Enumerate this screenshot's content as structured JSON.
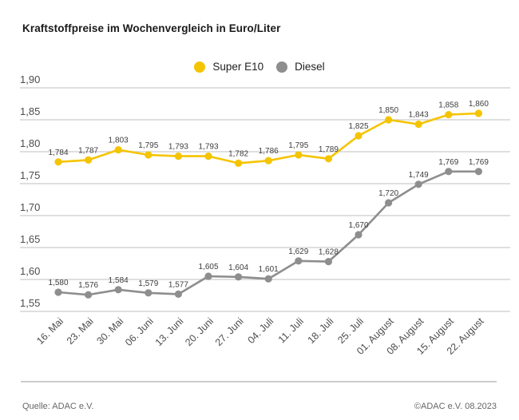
{
  "title": "Kraftstoffpreise im Wochenvergleich in Euro/Liter",
  "legend": {
    "items": [
      {
        "label": "Super E10",
        "color": "#F5C400",
        "icon": "circle-marker"
      },
      {
        "label": "Diesel",
        "color": "#8E8E8E",
        "icon": "circle-marker"
      }
    ]
  },
  "footer": {
    "source": "Quelle: ADAC e.V.",
    "copyright": "©ADAC e.V. 08.2023"
  },
  "chart_data": {
    "type": "line",
    "title": "Kraftstoffpreise im Wochenvergleich in Euro/Liter",
    "unit": "Euro/Liter",
    "categories": [
      "16. Mai",
      "23. Mai",
      "30. Mai",
      "06. Juni",
      "13. Juni",
      "20. Juni",
      "27. Juni",
      "04. Juli",
      "11. Juli",
      "18. Juli",
      "25. Juli",
      "01. August",
      "08. August",
      "15. August",
      "22. August"
    ],
    "series": [
      {
        "name": "Super E10",
        "color": "#F5C400",
        "values": [
          1.784,
          1.787,
          1.803,
          1.795,
          1.793,
          1.793,
          1.782,
          1.786,
          1.795,
          1.789,
          1.825,
          1.85,
          1.843,
          1.858,
          1.86
        ],
        "labels": [
          "1,784",
          "1,787",
          "1,803",
          "1,795",
          "1,793",
          "1,793",
          "1,782",
          "1,786",
          "1,795",
          "1,789",
          "1,825",
          "1,850",
          "1,843",
          "1,858",
          "1,860"
        ]
      },
      {
        "name": "Diesel",
        "color": "#8E8E8E",
        "values": [
          1.58,
          1.576,
          1.584,
          1.579,
          1.577,
          1.605,
          1.604,
          1.601,
          1.629,
          1.628,
          1.67,
          1.72,
          1.749,
          1.769,
          1.769
        ],
        "labels": [
          "1,580",
          "1,576",
          "1,584",
          "1,579",
          "1,577",
          "1,605",
          "1,604",
          "1,601",
          "1,629",
          "1,628",
          "1,670",
          "1,720",
          "1,749",
          "1,769",
          "1,769"
        ]
      }
    ],
    "yticks": [
      1.9,
      1.85,
      1.8,
      1.75,
      1.7,
      1.65,
      1.6,
      1.55
    ],
    "ytick_labels": [
      "1,90",
      "1,85",
      "1,80",
      "1,75",
      "1,70",
      "1,65",
      "1,60",
      "1,55"
    ],
    "ylim": [
      1.53,
      1.92
    ],
    "grid": true,
    "legend_position": "top-center",
    "colors": {
      "gridline": "#cccccc",
      "axis_text": "#4d4d4d",
      "data_label": "#3d3d3d",
      "title_text": "#1a1a1a",
      "footer_text": "#666666"
    }
  }
}
